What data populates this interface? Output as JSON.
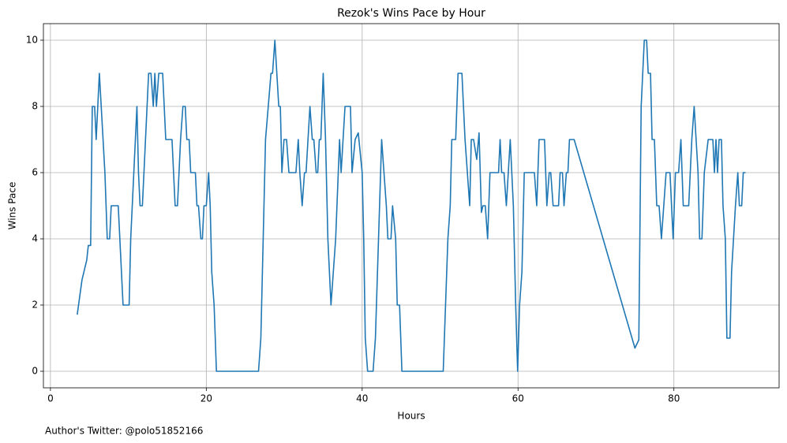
{
  "chart_data": {
    "type": "line",
    "title": "Rezok's Wins Pace by Hour",
    "x_label": "Hours",
    "y_label": "Wins Pace",
    "annotation": "Author's Twitter: @polo51852166",
    "color": "#1f77b4",
    "grid": true,
    "xlim": [
      -0.9,
      93.5
    ],
    "ylim": [
      -0.5,
      10.5
    ],
    "xticks": [
      0,
      20,
      40,
      60,
      80
    ],
    "yticks": [
      0,
      2,
      4,
      6,
      8,
      10
    ],
    "x": [
      3.44,
      4.05,
      4.66,
      4.86,
      5.16,
      5.37,
      5.67,
      5.87,
      6.28,
      6.99,
      7.29,
      7.6,
      7.8,
      8.7,
      9.32,
      10.1,
      10.3,
      10.7,
      11.1,
      11.3,
      11.5,
      11.8,
      12.2,
      12.6,
      12.9,
      13.2,
      13.4,
      13.6,
      13.9,
      14.4,
      14.8,
      15.6,
      16.0,
      16.3,
      16.7,
      17.0,
      17.3,
      17.5,
      17.8,
      18.0,
      18.6,
      18.8,
      19.0,
      19.3,
      19.5,
      19.7,
      20.0,
      20.3,
      20.5,
      20.7,
      21.0,
      21.3,
      26.7,
      27.0,
      27.6,
      28.3,
      28.5,
      28.8,
      29.3,
      29.5,
      29.7,
      29.97,
      30.3,
      30.6,
      31.5,
      31.8,
      32.0,
      32.3,
      32.6,
      32.8,
      33.3,
      33.6,
      33.8,
      34.1,
      34.3,
      34.5,
      34.7,
      35.0,
      35.3,
      35.6,
      36.0,
      36.6,
      37.1,
      37.3,
      37.8,
      38.5,
      38.7,
      39.1,
      39.5,
      40.0,
      40.2,
      40.4,
      40.7,
      41.4,
      41.7,
      42.1,
      42.5,
      42.8,
      43.1,
      43.3,
      43.7,
      43.9,
      44.3,
      44.5,
      44.8,
      45.1,
      50.4,
      50.7,
      51.0,
      51.3,
      51.5,
      52.0,
      52.3,
      52.8,
      53.2,
      53.8,
      54.0,
      54.3,
      54.7,
      55.0,
      55.3,
      55.5,
      55.8,
      56.1,
      56.4,
      57.5,
      57.7,
      57.9,
      58.2,
      58.5,
      59.0,
      59.4,
      59.7,
      59.95,
      60.2,
      60.5,
      60.8,
      62.1,
      62.4,
      62.7,
      63.4,
      63.7,
      64.0,
      64.2,
      64.5,
      65.2,
      65.4,
      65.7,
      65.9,
      66.2,
      66.4,
      66.6,
      67.2,
      75.0,
      75.5,
      75.8,
      76.2,
      76.5,
      76.7,
      77.0,
      77.2,
      77.5,
      77.8,
      78.1,
      78.4,
      79.0,
      79.5,
      79.9,
      80.2,
      80.6,
      80.9,
      81.2,
      81.9,
      82.3,
      82.6,
      83.1,
      83.3,
      83.6,
      83.9,
      84.4,
      85.0,
      85.2,
      85.4,
      85.6,
      85.8,
      86.1,
      86.3,
      86.6,
      86.8,
      87.2,
      87.4,
      87.9,
      88.2,
      88.4,
      88.7,
      88.9,
      89.2
    ],
    "values": [
      1.71,
      2.76,
      3.36,
      3.8,
      3.8,
      8,
      8,
      7,
      9,
      6,
      4,
      4,
      5,
      5,
      2,
      2,
      4,
      6,
      8,
      6,
      5,
      5,
      7,
      9,
      9,
      8,
      9,
      8,
      9,
      9,
      7,
      7,
      5,
      5,
      7,
      8,
      8,
      7,
      7,
      6,
      6,
      5,
      5,
      4,
      4,
      5,
      5,
      6,
      5,
      3,
      2,
      0,
      0,
      1,
      7,
      9,
      9,
      10,
      8,
      8,
      6,
      7,
      7,
      6,
      6,
      7,
      6,
      5,
      6,
      6,
      8,
      7,
      7,
      6,
      6,
      7,
      7,
      9,
      7,
      4,
      2,
      4,
      7,
      6,
      8,
      8,
      6,
      7,
      7.2,
      6,
      4,
      1,
      0,
      0,
      1,
      4,
      7,
      6,
      5,
      4,
      4,
      5,
      4,
      2,
      2,
      0,
      0,
      2,
      4,
      5,
      7,
      7,
      9,
      9,
      7,
      5,
      7,
      7,
      6.4,
      7.2,
      4.8,
      5,
      5,
      4,
      6,
      6,
      7,
      6,
      6,
      5,
      7,
      5,
      2,
      0,
      2,
      3,
      6,
      6,
      5,
      7,
      7,
      5,
      6,
      6,
      5,
      5,
      6,
      6,
      5,
      6,
      6,
      7,
      7,
      0.7,
      0.95,
      8,
      10,
      10,
      9,
      9,
      7,
      7,
      5,
      5,
      4,
      6,
      6,
      4,
      6,
      6,
      7,
      5,
      5,
      7,
      8,
      6,
      4,
      4,
      6,
      7,
      7,
      6,
      7,
      6,
      7,
      7,
      5,
      4,
      1,
      1,
      3,
      5,
      6,
      5,
      5,
      6,
      6
    ]
  }
}
